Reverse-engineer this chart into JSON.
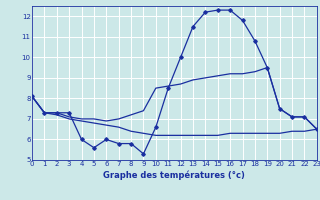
{
  "title": "Graphe des températures (°c)",
  "xlim": [
    0,
    23
  ],
  "ylim": [
    5,
    12.5
  ],
  "yticks": [
    5,
    6,
    7,
    8,
    9,
    10,
    11,
    12
  ],
  "xticks": [
    0,
    1,
    2,
    3,
    4,
    5,
    6,
    7,
    8,
    9,
    10,
    11,
    12,
    13,
    14,
    15,
    16,
    17,
    18,
    19,
    20,
    21,
    22,
    23
  ],
  "bg_color": "#cce8e8",
  "line_color": "#1a2fa0",
  "grid_color": "#ffffff",
  "line1_x": [
    0,
    1,
    2,
    3,
    4,
    5,
    6,
    7,
    8,
    9,
    10,
    11,
    12,
    13,
    14,
    15,
    16,
    17,
    18,
    19,
    20,
    21,
    22,
    23
  ],
  "line1_y": [
    8.1,
    7.3,
    7.3,
    7.3,
    6.0,
    5.6,
    6.0,
    5.8,
    5.8,
    5.3,
    6.6,
    8.5,
    10.0,
    11.5,
    12.2,
    12.3,
    12.3,
    11.8,
    10.8,
    9.5,
    7.5,
    7.1,
    7.1,
    6.5
  ],
  "line2_x": [
    0,
    1,
    2,
    3,
    4,
    5,
    6,
    7,
    8,
    9,
    10,
    11,
    12,
    13,
    14,
    15,
    16,
    17,
    18,
    19,
    20,
    21,
    22,
    23
  ],
  "line2_y": [
    8.1,
    7.3,
    7.3,
    7.1,
    7.0,
    7.0,
    6.9,
    7.0,
    7.2,
    7.4,
    8.5,
    8.6,
    8.7,
    8.9,
    9.0,
    9.1,
    9.2,
    9.2,
    9.3,
    9.5,
    7.5,
    7.1,
    7.1,
    6.5
  ],
  "line3_x": [
    0,
    1,
    2,
    3,
    4,
    5,
    6,
    7,
    8,
    9,
    10,
    11,
    12,
    13,
    14,
    15,
    16,
    17,
    18,
    19,
    20,
    21,
    22,
    23
  ],
  "line3_y": [
    8.1,
    7.3,
    7.2,
    7.0,
    6.9,
    6.8,
    6.7,
    6.6,
    6.4,
    6.3,
    6.2,
    6.2,
    6.2,
    6.2,
    6.2,
    6.2,
    6.3,
    6.3,
    6.3,
    6.3,
    6.3,
    6.4,
    6.4,
    6.5
  ]
}
